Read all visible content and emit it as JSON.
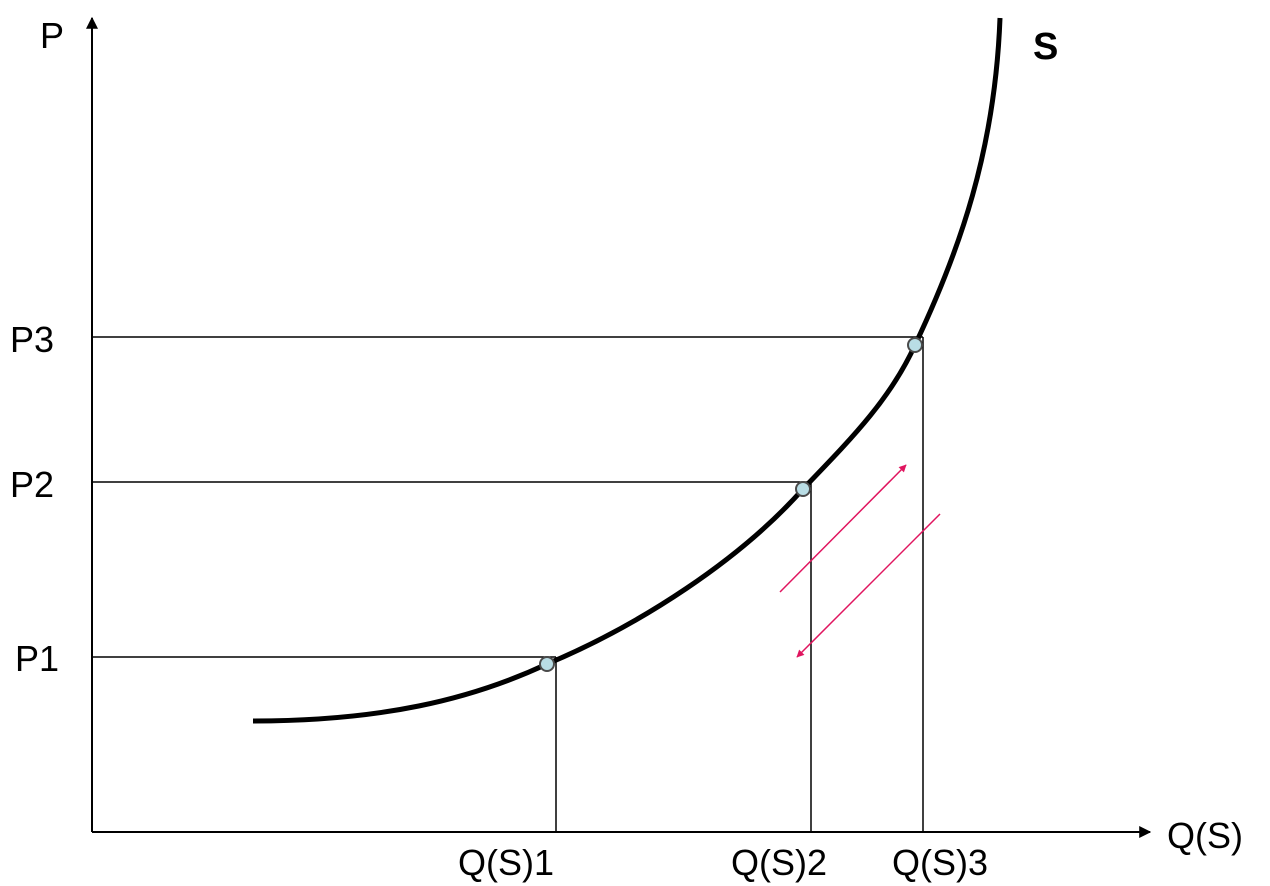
{
  "axes": {
    "y_label": "P",
    "x_label": "Q(S)"
  },
  "curve": {
    "label": "S"
  },
  "price_levels": [
    {
      "label": "P1"
    },
    {
      "label": "P2"
    },
    {
      "label": "P3"
    }
  ],
  "quantity_levels": [
    {
      "label": "Q(S)1"
    },
    {
      "label": "Q(S)2"
    },
    {
      "label": "Q(S)3"
    }
  ],
  "colors": {
    "curve": "#000000",
    "guide_lines": "#000000",
    "points_fill": "#b9dde5",
    "movement_arrows": "#e0155f"
  }
}
